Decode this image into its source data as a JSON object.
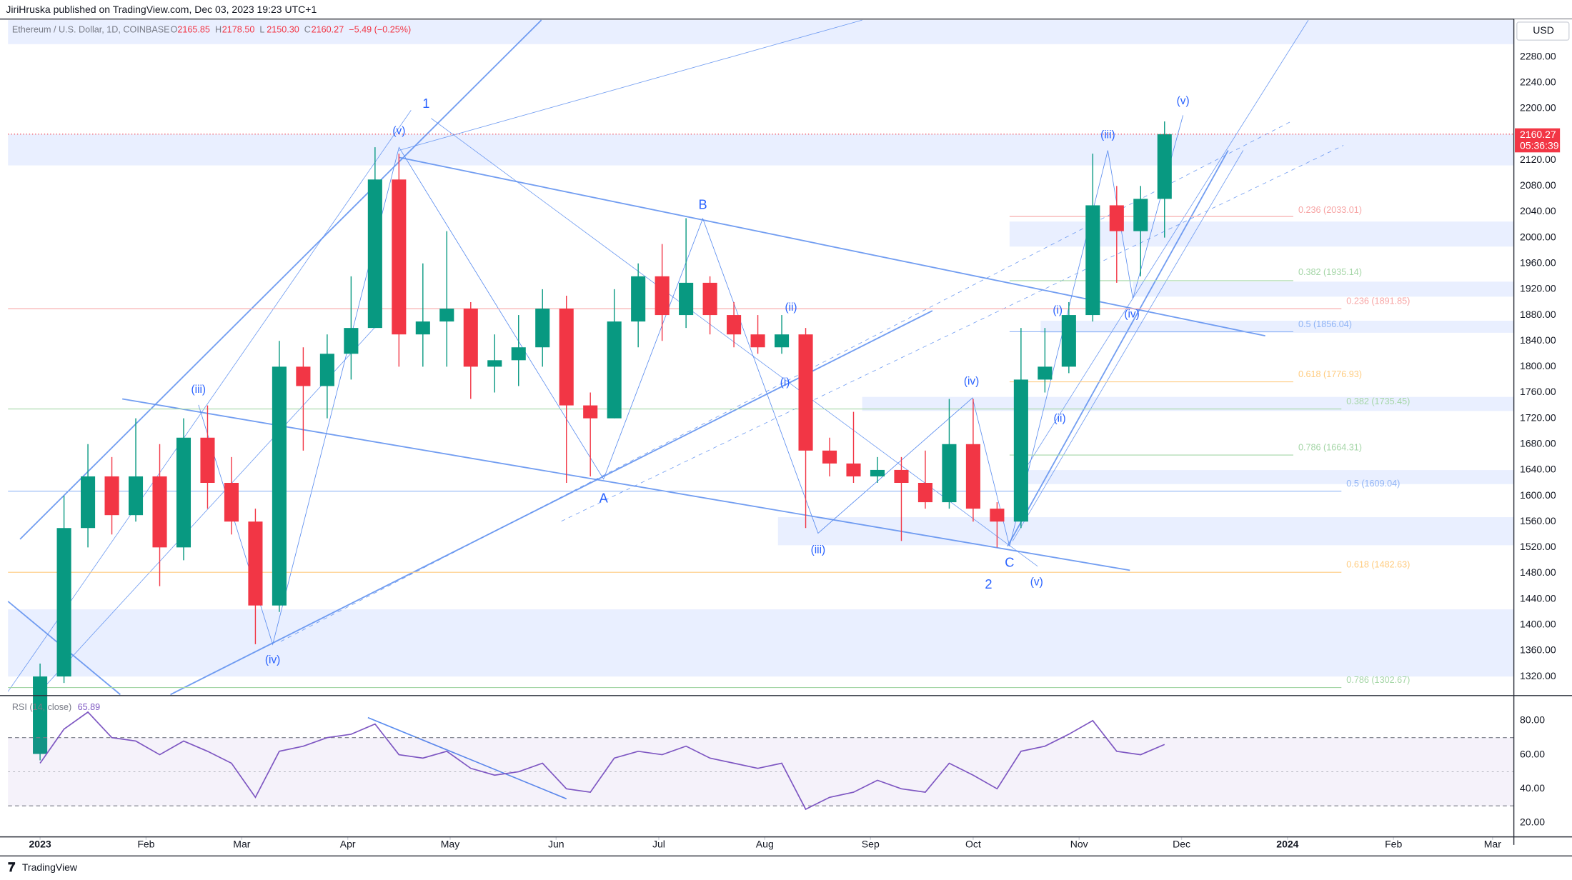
{
  "header": {
    "publisher": "JiriHruska published on TradingView.com, Dec 03, 2023 19:23 UTC+1",
    "symbol": "Ethereum / U.S. Dollar, 1D, COINBASE",
    "ohlc": [
      {
        "label": "O",
        "value": "2165.85"
      },
      {
        "label": "H",
        "value": "2178.50"
      },
      {
        "label": "L",
        "value": "2150.30"
      },
      {
        "label": "C",
        "value": "2160.27"
      }
    ],
    "change": "−5.49 (−0.25%)",
    "currency": "USD",
    "last_price": "2160.27",
    "countdown": "05:36:39"
  },
  "chart_data": [
    {
      "type": "candlestick",
      "x": [
        0,
        1,
        2,
        3,
        4,
        5,
        6,
        7,
        8,
        9,
        10,
        11,
        12,
        13,
        14,
        15,
        16,
        17,
        18,
        19,
        20,
        21,
        22,
        23,
        24,
        25,
        26,
        27,
        28,
        29,
        30,
        31,
        32,
        33,
        34,
        35,
        36,
        37,
        38,
        39,
        40,
        41,
        42,
        43,
        44,
        45,
        46,
        47
      ],
      "open": [
        1200,
        1320,
        1550,
        1630,
        1570,
        1630,
        1520,
        1690,
        1620,
        1560,
        1430,
        1800,
        1770,
        1820,
        1860,
        2090,
        1850,
        1870,
        1890,
        1800,
        1810,
        1830,
        1890,
        1740,
        1720,
        1870,
        1940,
        1880,
        1930,
        1880,
        1850,
        1830,
        1850,
        1670,
        1650,
        1630,
        1640,
        1620,
        1590,
        1680,
        1580,
        1560,
        1780,
        1800,
        1880,
        2050,
        2010,
        2060
      ],
      "high": [
        1340,
        1600,
        1680,
        1660,
        1720,
        1680,
        1720,
        1740,
        1660,
        1580,
        1840,
        1830,
        1850,
        1940,
        2140,
        2130,
        1960,
        2010,
        1900,
        1850,
        1880,
        1920,
        1910,
        1760,
        1920,
        1960,
        1990,
        2030,
        1940,
        1900,
        1880,
        1880,
        1860,
        1690,
        1730,
        1660,
        1660,
        1670,
        1750,
        1750,
        1590,
        1860,
        1860,
        1900,
        2130,
        2080,
        2080,
        2180
      ],
      "low": [
        1190,
        1310,
        1520,
        1540,
        1560,
        1460,
        1500,
        1580,
        1540,
        1370,
        1420,
        1670,
        1720,
        1780,
        1860,
        1800,
        1800,
        1800,
        1750,
        1760,
        1770,
        1800,
        1620,
        1630,
        1720,
        1830,
        1840,
        1860,
        1850,
        1830,
        1820,
        1820,
        1550,
        1630,
        1620,
        1620,
        1530,
        1580,
        1580,
        1560,
        1520,
        1550,
        1760,
        1790,
        1870,
        1930,
        1940,
        2000
      ],
      "close": [
        1320,
        1550,
        1630,
        1570,
        1630,
        1520,
        1690,
        1620,
        1560,
        1430,
        1800,
        1770,
        1820,
        1860,
        2090,
        1850,
        1870,
        1890,
        1800,
        1810,
        1830,
        1890,
        1740,
        1720,
        1870,
        1940,
        1880,
        1930,
        1880,
        1850,
        1830,
        1850,
        1670,
        1650,
        1630,
        1640,
        1620,
        1590,
        1680,
        1580,
        1560,
        1780,
        1800,
        1880,
        2050,
        2010,
        2060,
        2160.27
      ],
      "up_color": "#089981",
      "down_color": "#f23645",
      "xlim": [
        -1.34,
        61.6
      ],
      "ylim": [
        1292,
        2337
      ],
      "xticks": [
        {
          "value": 0,
          "label": "2023"
        },
        {
          "value": 4.43,
          "label": "Feb"
        },
        {
          "value": 8.43,
          "label": "Mar"
        },
        {
          "value": 12.86,
          "label": "Apr"
        },
        {
          "value": 17.14,
          "label": "May"
        },
        {
          "value": 21.57,
          "label": "Jun"
        },
        {
          "value": 25.86,
          "label": "Jul"
        },
        {
          "value": 30.29,
          "label": "Aug"
        },
        {
          "value": 34.71,
          "label": "Sep"
        },
        {
          "value": 39,
          "label": "Oct"
        },
        {
          "value": 43.43,
          "label": "Nov"
        },
        {
          "value": 47.71,
          "label": "Dec"
        },
        {
          "value": 52.14,
          "label": "2024"
        },
        {
          "value": 56.57,
          "label": "Feb"
        },
        {
          "value": 60.71,
          "label": "Mar"
        }
      ],
      "yticks": [
        {
          "value": 1320,
          "label": "1320.00"
        },
        {
          "value": 1360,
          "label": "1360.00"
        },
        {
          "value": 1400,
          "label": "1400.00"
        },
        {
          "value": 1440,
          "label": "1440.00"
        },
        {
          "value": 1480,
          "label": "1480.00"
        },
        {
          "value": 1520,
          "label": "1520.00"
        },
        {
          "value": 1560,
          "label": "1560.00"
        },
        {
          "value": 1600,
          "label": "1600.00"
        },
        {
          "value": 1640,
          "label": "1640.00"
        },
        {
          "value": 1680,
          "label": "1680.00"
        },
        {
          "value": 1720,
          "label": "1720.00"
        },
        {
          "value": 1760,
          "label": "1760.00"
        },
        {
          "value": 1800,
          "label": "1800.00"
        },
        {
          "value": 1840,
          "label": "1840.00"
        },
        {
          "value": 1880,
          "label": "1880.00"
        },
        {
          "value": 1920,
          "label": "1920.00"
        },
        {
          "value": 1960,
          "label": "1960.00"
        },
        {
          "value": 2000,
          "label": "2000.00"
        },
        {
          "value": 2040,
          "label": "2040.00"
        },
        {
          "value": 2080,
          "label": "2080.00"
        },
        {
          "value": 2120,
          "label": "2120.00"
        },
        {
          "value": 2160,
          "label": "2160.00"
        },
        {
          "value": 2200,
          "label": "2200.00"
        },
        {
          "value": 2240,
          "label": "2240.00"
        },
        {
          "value": 2280,
          "label": "2280.00"
        }
      ]
    },
    {
      "type": "line",
      "title": "RSI (14, close)",
      "last_value": "65.89",
      "color": "#7e57c2",
      "x": [
        0,
        1,
        2,
        3,
        4,
        5,
        6,
        7,
        8,
        9,
        10,
        11,
        12,
        13,
        14,
        15,
        16,
        17,
        18,
        19,
        20,
        21,
        22,
        23,
        24,
        25,
        26,
        27,
        28,
        29,
        30,
        31,
        32,
        33,
        34,
        35,
        36,
        37,
        38,
        39,
        40,
        41,
        42,
        43,
        44,
        45,
        46,
        47
      ],
      "values": [
        55,
        75,
        85,
        70,
        68,
        60,
        68,
        62,
        55,
        35,
        62,
        65,
        70,
        72,
        78,
        60,
        58,
        62,
        52,
        48,
        50,
        55,
        40,
        38,
        58,
        62,
        60,
        65,
        58,
        55,
        52,
        55,
        28,
        35,
        38,
        45,
        40,
        38,
        55,
        48,
        40,
        62,
        65,
        72,
        80,
        62,
        60,
        66
      ],
      "bands": [
        30,
        70
      ],
      "midline": 50,
      "ylim": [
        11.8,
        94.1
      ],
      "yticks": [
        {
          "value": 20,
          "label": "20.00"
        },
        {
          "value": 40,
          "label": "40.00"
        },
        {
          "value": 60,
          "label": "60.00"
        },
        {
          "value": 80,
          "label": "80.00"
        }
      ]
    }
  ],
  "annotations": {
    "waves": [
      "1",
      "(v)",
      "(iii)",
      "(iv)",
      "A",
      "B",
      "(ii)",
      "(i)",
      "(iii)",
      "(iv)",
      "2",
      "C",
      "(v)",
      "(i)",
      "(ii)",
      "(iii)",
      "(iv)",
      "(v)"
    ],
    "fib_levels": [
      "0.236 (2033.01)",
      "0.382 (1935.14)",
      "0.236 (1891.85)",
      "0.5 (1856.04)",
      "0.618 (1776.93)",
      "0.382 (1735.45)",
      "0.786 (1664.31)",
      "0.5 (1609.04)",
      "0.618 (1482.63)",
      "0.786 (1302.67)"
    ]
  },
  "footer": "TradingView"
}
